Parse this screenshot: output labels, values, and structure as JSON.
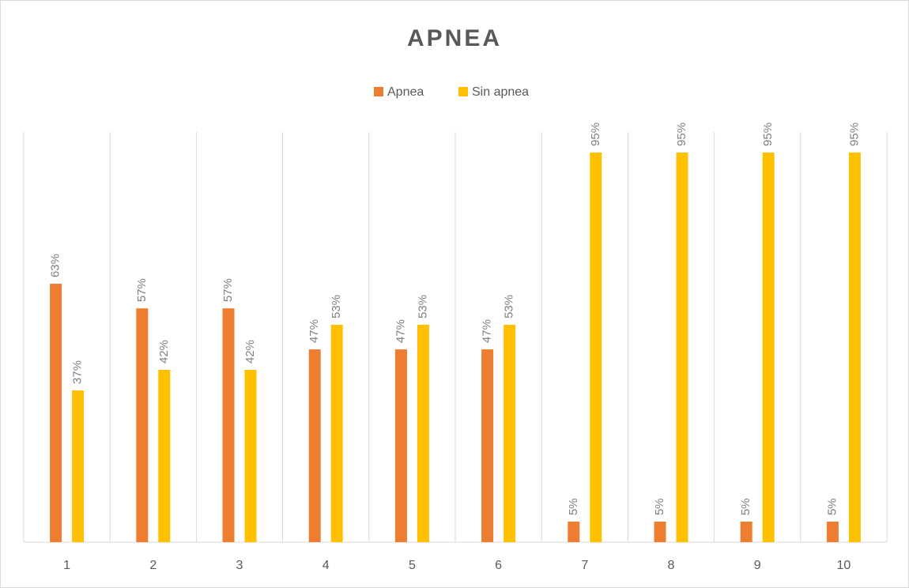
{
  "chart_data": {
    "type": "bar",
    "title": "APNEA",
    "categories": [
      "1",
      "2",
      "3",
      "4",
      "5",
      "6",
      "7",
      "8",
      "9",
      "10"
    ],
    "series": [
      {
        "name": "Apnea",
        "color": "#ed7d31",
        "values": [
          63,
          57,
          57,
          47,
          47,
          47,
          5,
          5,
          5,
          5
        ],
        "value_labels": [
          "63%",
          "57%",
          "57%",
          "47%",
          "47%",
          "47%",
          "5%",
          "5%",
          "5%",
          "5%"
        ]
      },
      {
        "name": "Sin apnea",
        "color": "#ffc000",
        "values": [
          37,
          42,
          42,
          53,
          53,
          53,
          95,
          95,
          95,
          95
        ],
        "value_labels": [
          "37%",
          "42%",
          "42%",
          "53%",
          "53%",
          "53%",
          "95%",
          "95%",
          "95%",
          "95%"
        ]
      }
    ],
    "legend": "top"
  }
}
